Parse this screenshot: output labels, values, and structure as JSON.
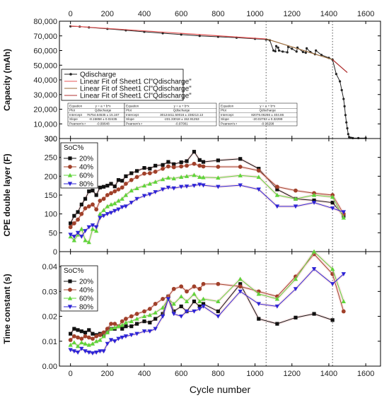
{
  "chart_data": [
    {
      "type": "line",
      "ylabel": "Capacity (mAh)",
      "ylim": [
        0,
        80000
      ],
      "yticks": [
        10000,
        20000,
        30000,
        40000,
        50000,
        60000,
        70000,
        80000
      ],
      "ytick_labels": [
        "10,000",
        "20,000",
        "30,000",
        "40,000",
        "50,000",
        "60,000",
        "70,000",
        "80,000"
      ],
      "ymin_label": "300",
      "xlim": [
        -60,
        1680
      ],
      "xticks": [
        0,
        200,
        400,
        600,
        800,
        1000,
        1200,
        1400,
        1600
      ],
      "xticks_position": "top",
      "legend_position": "middle-left",
      "vlines": [
        1060,
        1420
      ],
      "series": [
        {
          "name": "Qdischarge",
          "color": "#222222",
          "x": [
            0,
            50,
            100,
            200,
            300,
            400,
            500,
            600,
            700,
            800,
            900,
            1000,
            1060,
            1080,
            1100,
            1110,
            1115,
            1125,
            1130,
            1150,
            1175,
            1180,
            1200,
            1225,
            1230,
            1260,
            1275,
            1280,
            1300,
            1325,
            1330,
            1360,
            1400,
            1420,
            1440,
            1460,
            1470,
            1480,
            1485,
            1490,
            1495,
            1500,
            1505,
            1510,
            1520,
            1530,
            1560,
            1600
          ],
          "y": [
            76500,
            76300,
            75800,
            74800,
            73800,
            72800,
            71800,
            70900,
            70000,
            69400,
            68800,
            68000,
            67500,
            67000,
            60000,
            59500,
            63000,
            62000,
            60000,
            59300,
            58800,
            62500,
            61200,
            59300,
            62000,
            59000,
            58500,
            61500,
            59000,
            57500,
            60000,
            57000,
            55000,
            53800,
            44000,
            39000,
            33000,
            27000,
            22000,
            16000,
            11000,
            7000,
            3000,
            1000,
            500,
            300,
            300,
            300
          ]
        },
        {
          "name": "Linear Fit of Sheet1 Cl\"Qdischarge\"",
          "color": "#e55555",
          "x": [
            0,
            1060
          ],
          "y": [
            76750,
            67900
          ]
        },
        {
          "name": "Linear Fit of Sheet1 Cl\"Qdischarge\"",
          "color": "#9a6a3a",
          "x": [
            1060,
            1420
          ],
          "y": [
            68000,
            53800
          ]
        },
        {
          "name": "Linear Fit of Sheet1 Cl\"Qdischarge\"",
          "color": "#b03030",
          "x": [
            1420,
            1500
          ],
          "y": [
            53800,
            45000
          ]
        }
      ],
      "fit_tables": [
        {
          "rows": [
            [
              "Equation",
              "y = a + b*x"
            ],
            [
              "Plot",
              "Qdischarge"
            ],
            [
              "Intercept",
              "76754.64535 ± 15.167"
            ],
            [
              "Slope",
              "-8.15858 ± 0.02435"
            ],
            [
              "Pearson's r",
              "-0.99648"
            ]
          ]
        },
        {
          "rows": [
            [
              "Equation",
              "y = a + b*x"
            ],
            [
              "Plot",
              "Qdischarge"
            ],
            [
              "Intercept",
              "30124411.50016 ± 238213.13"
            ],
            [
              "Slope",
              "-231.33018 ± 152.91253"
            ],
            [
              "Pearson's r",
              "-0.97081"
            ]
          ]
        },
        {
          "rows": [
            [
              "Equation",
              "y = a + b*x"
            ],
            [
              "Plot",
              "Qdischarge"
            ],
            [
              "Intercept",
              "82076.06266 ± 404.86"
            ],
            [
              "Slope",
              "-20.02763 ± 0.32299"
            ],
            [
              "Pearson's r",
              "-0.98298"
            ]
          ]
        }
      ]
    },
    {
      "type": "line",
      "ylabel": "CPE double layer (F)",
      "ylim": [
        0,
        300
      ],
      "yticks": [
        0,
        50,
        100,
        150,
        200,
        250,
        300
      ],
      "legend_title": "SoC%",
      "legend_position": "top-left",
      "vlines": [
        1060,
        1420
      ],
      "series": [
        {
          "name": "20%",
          "color": "#111111",
          "marker": "square",
          "x": [
            0,
            20,
            40,
            60,
            80,
            100,
            120,
            140,
            160,
            180,
            200,
            220,
            240,
            260,
            280,
            300,
            330,
            360,
            400,
            430,
            460,
            500,
            530,
            560,
            600,
            630,
            670,
            700,
            720,
            800,
            920,
            1020,
            1120,
            1220,
            1320,
            1420,
            1480
          ],
          "y": [
            75,
            95,
            105,
            125,
            140,
            160,
            162,
            150,
            170,
            172,
            175,
            180,
            173,
            190,
            188,
            200,
            208,
            214,
            222,
            220,
            228,
            230,
            238,
            232,
            237,
            240,
            265,
            243,
            238,
            242,
            246,
            220,
            165,
            140,
            136,
            130,
            95
          ]
        },
        {
          "name": "40%",
          "color": "#a0402a",
          "marker": "circle",
          "x": [
            0,
            20,
            40,
            60,
            80,
            100,
            120,
            140,
            160,
            180,
            200,
            220,
            240,
            260,
            280,
            300,
            330,
            360,
            400,
            430,
            460,
            500,
            530,
            560,
            600,
            630,
            670,
            700,
            720,
            800,
            920,
            1020,
            1120,
            1220,
            1320,
            1420,
            1480
          ],
          "y": [
            65,
            75,
            85,
            100,
            115,
            120,
            125,
            112,
            135,
            140,
            150,
            155,
            160,
            165,
            170,
            180,
            190,
            198,
            207,
            208,
            212,
            220,
            226,
            224,
            226,
            228,
            233,
            228,
            226,
            225,
            225,
            215,
            172,
            162,
            155,
            150,
            100
          ]
        },
        {
          "name": "60%",
          "color": "#5fd43a",
          "marker": "triangle-up",
          "x": [
            0,
            20,
            40,
            60,
            80,
            100,
            120,
            140,
            160,
            180,
            200,
            220,
            240,
            260,
            280,
            300,
            330,
            360,
            400,
            430,
            460,
            500,
            530,
            560,
            600,
            630,
            670,
            700,
            720,
            800,
            920,
            1020,
            1120,
            1220,
            1320,
            1420,
            1480
          ],
          "y": [
            40,
            30,
            45,
            60,
            30,
            25,
            60,
            55,
            100,
            110,
            120,
            125,
            128,
            135,
            140,
            150,
            162,
            168,
            175,
            180,
            185,
            192,
            196,
            194,
            198,
            200,
            203,
            198,
            197,
            196,
            202,
            198,
            150,
            140,
            150,
            145,
            90
          ]
        },
        {
          "name": "80%",
          "color": "#2d24d6",
          "marker": "triangle-down",
          "x": [
            0,
            20,
            40,
            60,
            80,
            100,
            120,
            140,
            160,
            180,
            200,
            220,
            240,
            260,
            280,
            300,
            330,
            360,
            400,
            430,
            460,
            500,
            530,
            560,
            600,
            630,
            670,
            700,
            720,
            800,
            920,
            1020,
            1120,
            1220,
            1320,
            1420,
            1480
          ],
          "y": [
            45,
            40,
            50,
            40,
            55,
            65,
            70,
            65,
            90,
            95,
            100,
            103,
            108,
            112,
            118,
            120,
            130,
            140,
            148,
            152,
            158,
            165,
            170,
            168,
            172,
            173,
            175,
            178,
            176,
            172,
            176,
            165,
            120,
            120,
            130,
            115,
            105
          ]
        }
      ]
    },
    {
      "type": "line",
      "ylabel": "Time constant (s)",
      "ylim": [
        0,
        0.046
      ],
      "yticks": [
        0.0,
        0.01,
        0.02,
        0.03,
        0.04
      ],
      "ytick_labels": [
        "0.00",
        "0.01",
        "0.02",
        "0.03",
        "0.04"
      ],
      "xlabel": "Cycle number",
      "xlim": [
        -60,
        1680
      ],
      "xticks": [
        0,
        200,
        400,
        600,
        800,
        1000,
        1200,
        1400,
        1600
      ],
      "legend_title": "SoC%",
      "legend_position": "top-left",
      "vlines": [
        1060,
        1420
      ],
      "series": [
        {
          "name": "20%",
          "color": "#111111",
          "marker": "square",
          "x": [
            0,
            20,
            40,
            60,
            80,
            100,
            120,
            140,
            160,
            180,
            200,
            220,
            240,
            260,
            280,
            300,
            330,
            360,
            400,
            430,
            460,
            500,
            530,
            560,
            600,
            630,
            670,
            700,
            720,
            800,
            920,
            1020,
            1120,
            1220,
            1320,
            1420
          ],
          "y": [
            0.013,
            0.015,
            0.0145,
            0.014,
            0.0135,
            0.0145,
            0.013,
            0.0125,
            0.013,
            0.0125,
            0.014,
            0.015,
            0.015,
            0.016,
            0.015,
            0.016,
            0.016,
            0.017,
            0.018,
            0.0175,
            0.019,
            0.021,
            0.028,
            0.022,
            0.024,
            0.022,
            0.026,
            0.024,
            0.025,
            0.022,
            0.033,
            0.019,
            0.017,
            0.0195,
            0.021,
            0.0185
          ]
        },
        {
          "name": "40%",
          "color": "#a0402a",
          "marker": "circle",
          "x": [
            0,
            20,
            40,
            60,
            80,
            100,
            120,
            140,
            160,
            180,
            200,
            220,
            240,
            260,
            280,
            300,
            330,
            360,
            400,
            430,
            460,
            500,
            530,
            560,
            600,
            630,
            670,
            700,
            720,
            800,
            920,
            1020,
            1120,
            1220,
            1320,
            1420,
            1480
          ],
          "y": [
            0.0105,
            0.012,
            0.0115,
            0.011,
            0.012,
            0.0115,
            0.011,
            0.012,
            0.0125,
            0.0135,
            0.015,
            0.017,
            0.017,
            0.016,
            0.018,
            0.019,
            0.02,
            0.021,
            0.022,
            0.023,
            0.025,
            0.027,
            0.028,
            0.031,
            0.032,
            0.03,
            0.032,
            0.031,
            0.033,
            0.033,
            0.032,
            0.03,
            0.028,
            0.036,
            0.045,
            0.037,
            0.022
          ]
        },
        {
          "name": "60%",
          "color": "#5fd43a",
          "marker": "triangle-up",
          "x": [
            0,
            20,
            40,
            60,
            80,
            100,
            120,
            140,
            160,
            180,
            200,
            220,
            240,
            260,
            280,
            300,
            330,
            360,
            400,
            430,
            460,
            500,
            530,
            560,
            600,
            630,
            670,
            700,
            720,
            800,
            920,
            1020,
            1120,
            1220,
            1320,
            1420,
            1480
          ],
          "y": [
            0.0085,
            0.0095,
            0.008,
            0.0095,
            0.009,
            0.0085,
            0.009,
            0.01,
            0.0105,
            0.012,
            0.0135,
            0.015,
            0.0155,
            0.016,
            0.0165,
            0.0175,
            0.018,
            0.019,
            0.02,
            0.0205,
            0.0215,
            0.0235,
            0.027,
            0.025,
            0.028,
            0.026,
            0.029,
            0.026,
            0.027,
            0.026,
            0.035,
            0.029,
            0.027,
            0.035,
            0.046,
            0.039,
            0.026
          ]
        },
        {
          "name": "80%",
          "color": "#2d24d6",
          "marker": "triangle-down",
          "x": [
            0,
            20,
            40,
            60,
            80,
            100,
            120,
            140,
            160,
            180,
            200,
            220,
            240,
            260,
            280,
            300,
            330,
            360,
            400,
            430,
            460,
            500,
            530,
            560,
            600,
            630,
            670,
            700,
            720,
            800,
            920,
            1020,
            1120,
            1220,
            1320,
            1420,
            1480
          ],
          "y": [
            0.0065,
            0.006,
            0.0055,
            0.007,
            0.006,
            0.0055,
            0.0052,
            0.0055,
            0.006,
            0.006,
            0.009,
            0.0105,
            0.01,
            0.011,
            0.0115,
            0.012,
            0.0125,
            0.013,
            0.014,
            0.014,
            0.015,
            0.02,
            0.027,
            0.021,
            0.02,
            0.022,
            0.022,
            0.023,
            0.024,
            0.02,
            0.03,
            0.025,
            0.024,
            0.031,
            0.039,
            0.033,
            0.037
          ]
        }
      ]
    }
  ]
}
